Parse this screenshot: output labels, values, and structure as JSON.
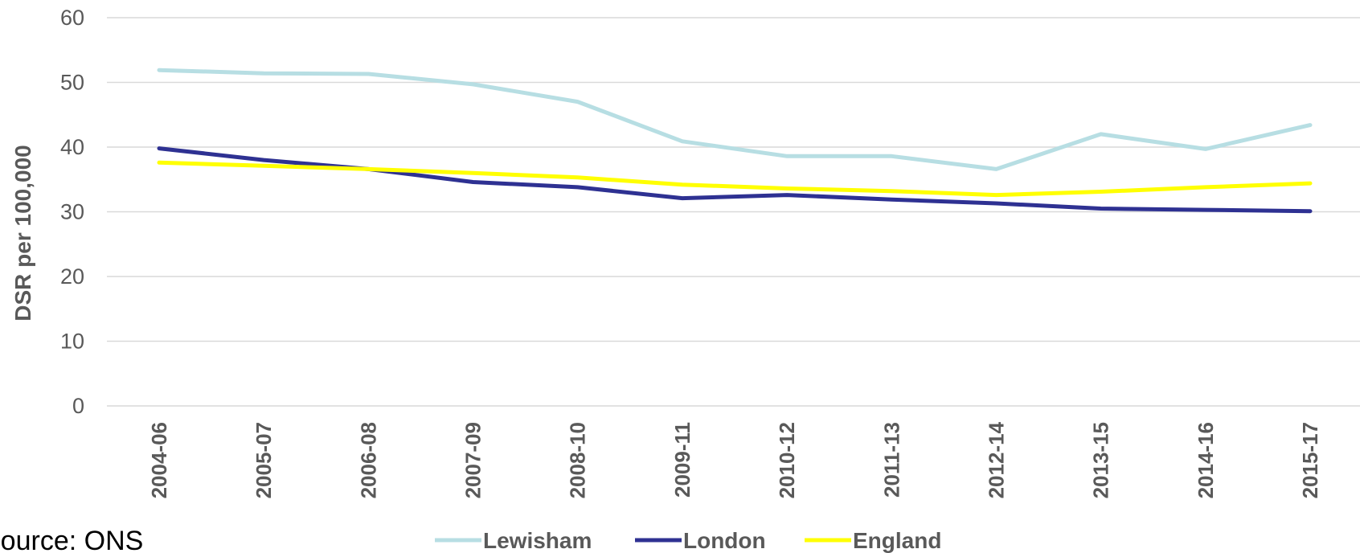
{
  "source_text": "Source: ONS",
  "chart_data": {
    "type": "line",
    "title": "",
    "xlabel": "",
    "ylabel": "DSR per 100,000",
    "ylim": [
      0,
      60
    ],
    "yticks": [
      0,
      10,
      20,
      30,
      40,
      50,
      60
    ],
    "grid": true,
    "legend_position": "bottom",
    "categories": [
      "2004-06",
      "2005-07",
      "2006-08",
      "2007-09",
      "2008-10",
      "2009-11",
      "2010-12",
      "2011-13",
      "2012-14",
      "2013-15",
      "2014-16",
      "2015-17"
    ],
    "series": [
      {
        "name": "Lewisham",
        "color": "#b7dee3",
        "values": [
          51.9,
          51.4,
          51.3,
          49.7,
          47.0,
          40.9,
          38.6,
          38.6,
          36.6,
          42.0,
          39.7,
          43.4
        ]
      },
      {
        "name": "London",
        "color": "#2e3192",
        "values": [
          39.8,
          38.0,
          36.6,
          34.6,
          33.8,
          32.1,
          32.6,
          31.9,
          31.3,
          30.5,
          30.3,
          30.1
        ]
      },
      {
        "name": "England",
        "color": "#ffff00",
        "values": [
          37.6,
          37.1,
          36.6,
          36.0,
          35.3,
          34.2,
          33.6,
          33.2,
          32.6,
          33.1,
          33.8,
          34.4
        ]
      }
    ]
  }
}
